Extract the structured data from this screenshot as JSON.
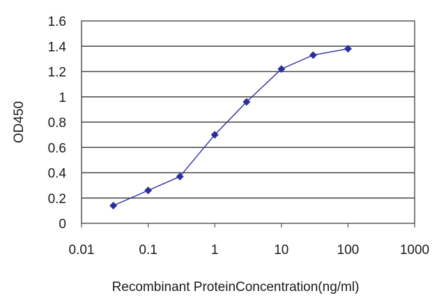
{
  "chart_data": {
    "type": "line",
    "title": "",
    "xlabel": "Recombinant ProteinConcentration(ng/ml)",
    "ylabel": "OD450",
    "x_scale": "log",
    "xlim": [
      0.01,
      1000
    ],
    "ylim": [
      0,
      1.6
    ],
    "x_ticks": [
      0.01,
      0.1,
      1,
      10,
      100,
      1000
    ],
    "x_tick_labels": [
      "0.01",
      "0.1",
      "1",
      "10",
      "100",
      "1000"
    ],
    "y_ticks": [
      0,
      0.2,
      0.4,
      0.6,
      0.8,
      1,
      1.2,
      1.4,
      1.6
    ],
    "y_tick_labels": [
      "0",
      "0.2",
      "0.4",
      "0.6",
      "0.8",
      "1",
      "1.2",
      "1.4",
      "1.6"
    ],
    "grid": "horizontal",
    "legend": "none",
    "series": [
      {
        "color": "#2b2f9e",
        "x": [
          0.03,
          0.1,
          0.3,
          1,
          3,
          10,
          30,
          100
        ],
        "y": [
          0.14,
          0.26,
          0.37,
          0.7,
          0.96,
          1.22,
          1.33,
          1.38
        ]
      }
    ]
  }
}
